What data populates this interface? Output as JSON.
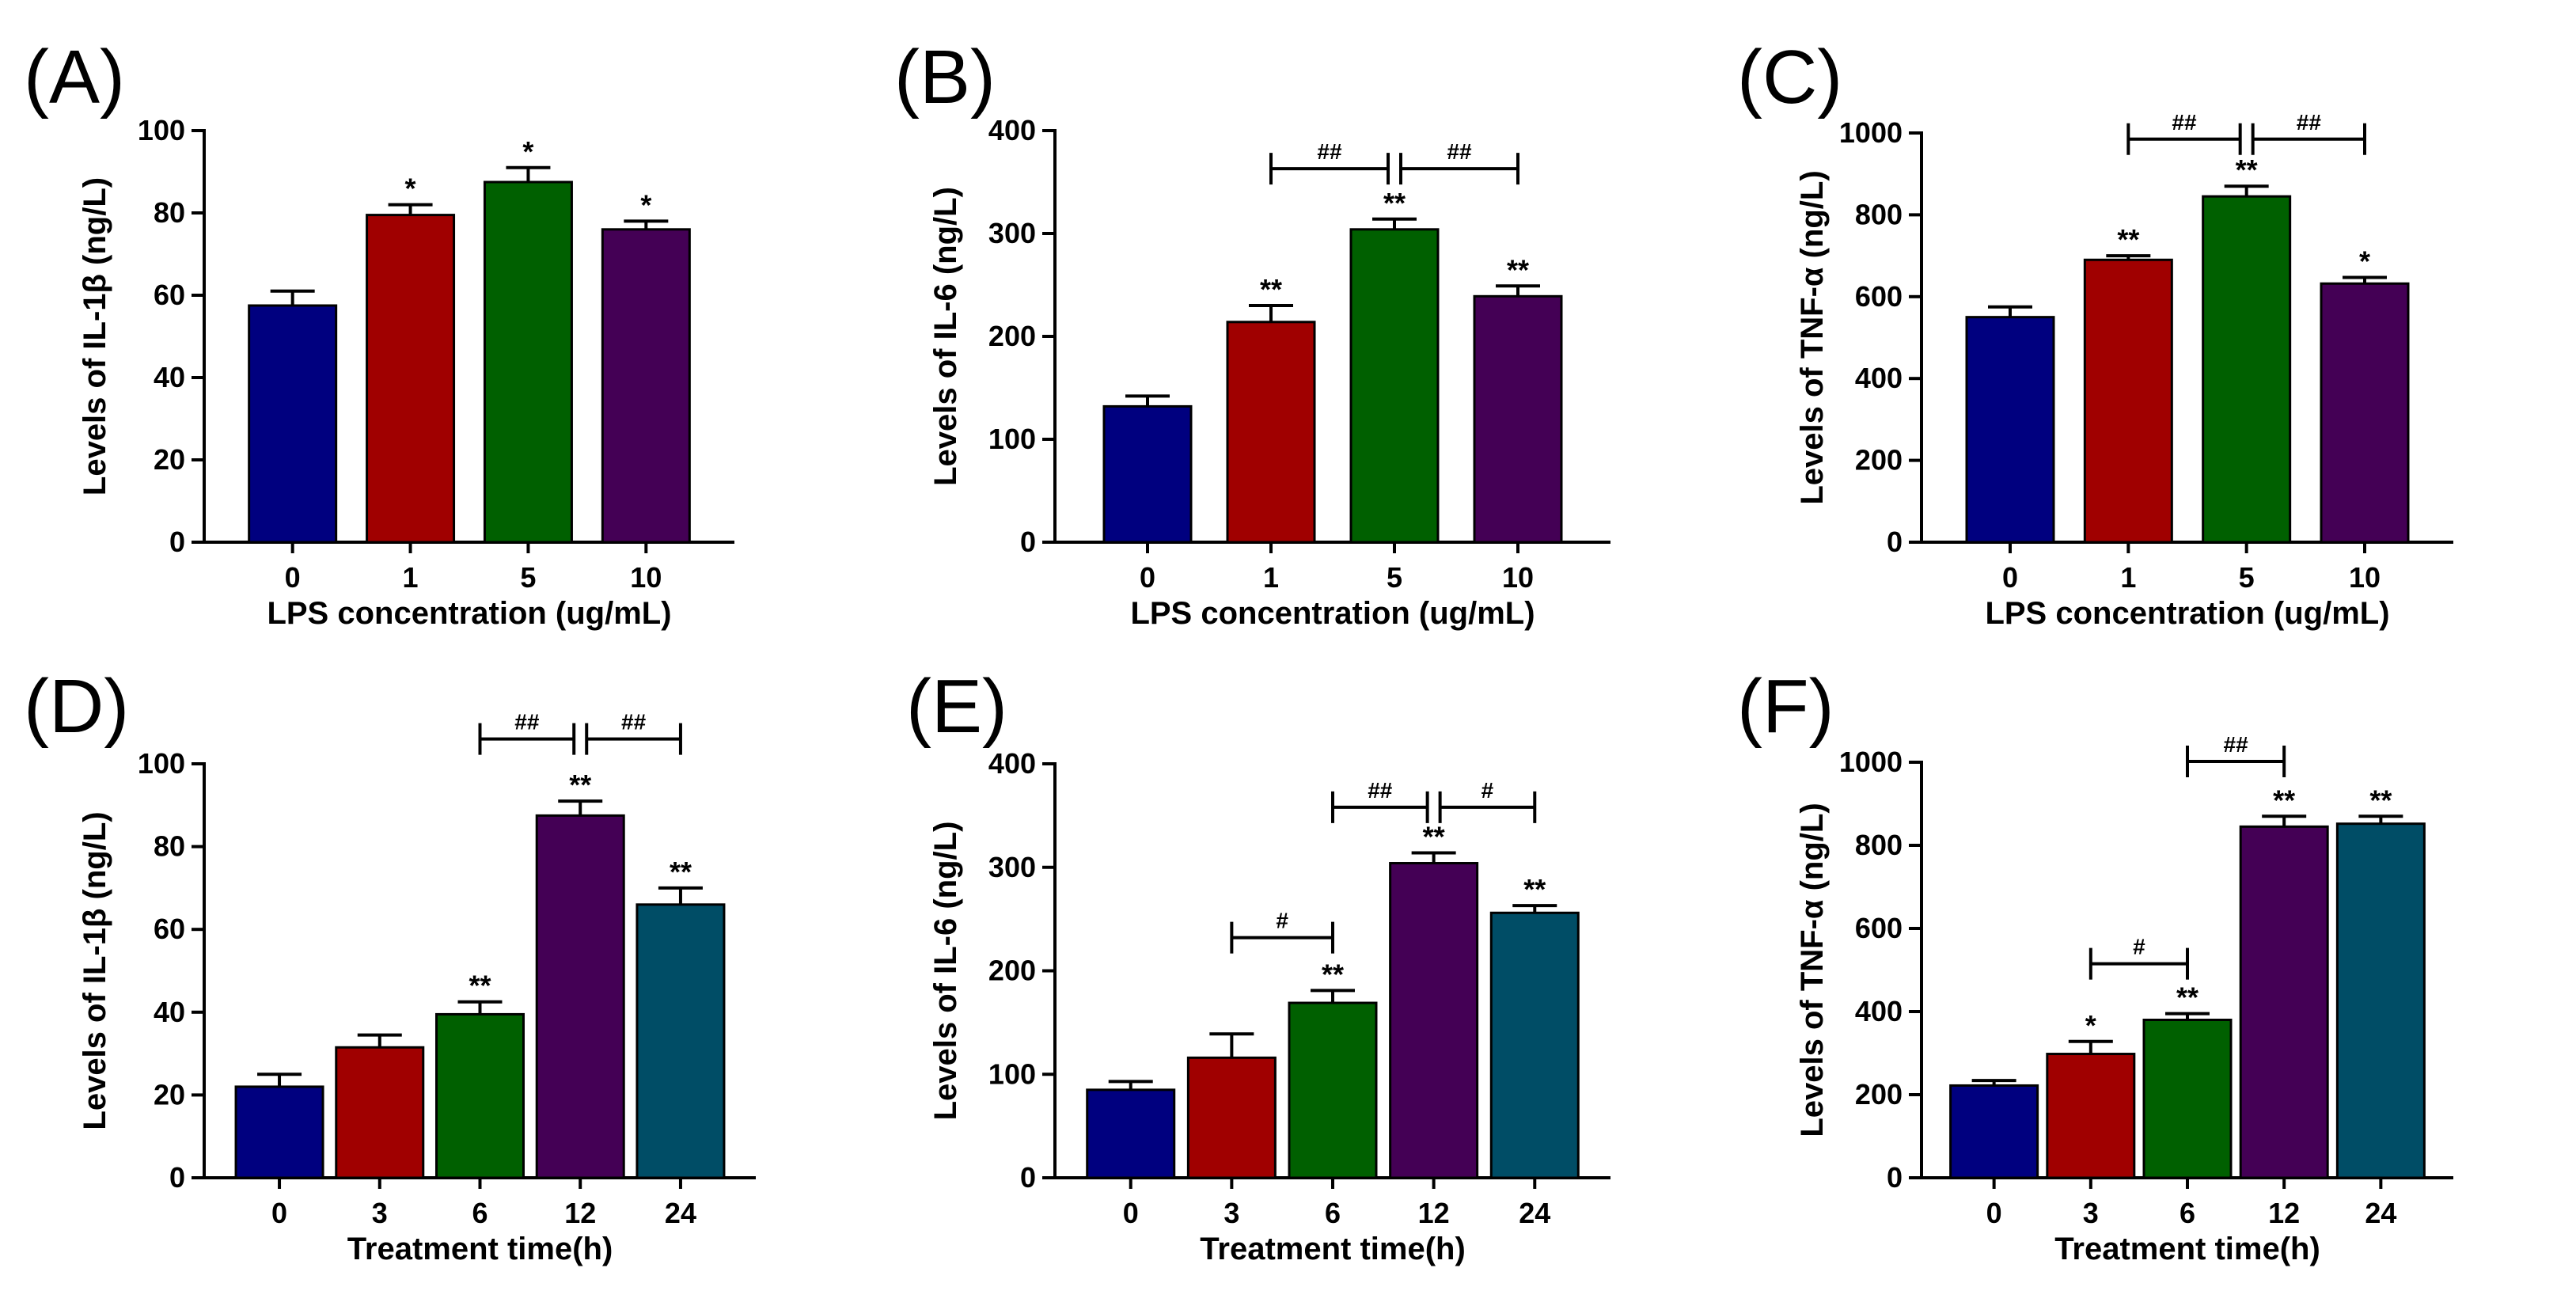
{
  "chart_data": [
    {
      "type": "bar",
      "panel": "(A)",
      "ylabel": "Levels of IL-1β (ng/L)",
      "xlabel": "LPS concentration (ug/mL)",
      "ylim": [
        0,
        100
      ],
      "yticks": [
        0,
        20,
        40,
        60,
        80,
        100
      ],
      "categories": [
        "0",
        "1",
        "5",
        "10"
      ],
      "values": [
        57.5,
        79.5,
        87.5,
        76
      ],
      "errors": [
        3.5,
        2.5,
        3.5,
        2
      ],
      "colors": [
        "#00007f",
        "#a00000",
        "#006000",
        "#440055"
      ],
      "sig": [
        "",
        "*",
        "*",
        "*"
      ],
      "brackets": []
    },
    {
      "type": "bar",
      "panel": "(B)",
      "ylabel": "Levels of IL-6 (ng/L)",
      "xlabel": "LPS concentration (ug/mL)",
      "ylim": [
        0,
        400
      ],
      "yticks": [
        0,
        100,
        200,
        300,
        400
      ],
      "categories": [
        "0",
        "1",
        "5",
        "10"
      ],
      "values": [
        132,
        214,
        304,
        239
      ],
      "errors": [
        10,
        16,
        10,
        10
      ],
      "colors": [
        "#00007f",
        "#a00000",
        "#006000",
        "#440055"
      ],
      "sig": [
        "",
        "**",
        "**",
        "**"
      ],
      "brackets": [
        {
          "from": 1,
          "to": 2,
          "y": 363,
          "label": "##",
          "side": "left"
        },
        {
          "from": 2,
          "to": 3,
          "y": 363,
          "label": "##",
          "side": "right"
        }
      ]
    },
    {
      "type": "bar",
      "panel": "(C)",
      "ylabel": "Levels of TNF-α (ng/L)",
      "xlabel": "LPS concentration (ug/mL)",
      "ylim": [
        0,
        1000
      ],
      "yticks": [
        0,
        200,
        400,
        600,
        800,
        1000
      ],
      "categories": [
        "0",
        "1",
        "5",
        "10"
      ],
      "values": [
        550,
        690,
        845,
        632
      ],
      "errors": [
        25,
        10,
        25,
        15
      ],
      "colors": [
        "#00007f",
        "#a00000",
        "#006000",
        "#440055"
      ],
      "sig": [
        "",
        "**",
        "**",
        "*"
      ],
      "brackets": [
        {
          "from": 1,
          "to": 2,
          "y": 985,
          "label": "##",
          "side": "left"
        },
        {
          "from": 2,
          "to": 3,
          "y": 985,
          "label": "##",
          "side": "right"
        }
      ]
    },
    {
      "type": "bar",
      "panel": "(D)",
      "ylabel": "Levels of IL-1β (ng/L)",
      "xlabel": "Treatment time(h)",
      "ylim": [
        0,
        100
      ],
      "yticks": [
        0,
        20,
        40,
        60,
        80,
        100
      ],
      "categories": [
        "0",
        "3",
        "6",
        "12",
        "24"
      ],
      "values": [
        22,
        31.5,
        39.5,
        87.5,
        66
      ],
      "errors": [
        3,
        3,
        3,
        3.5,
        4
      ],
      "colors": [
        "#00007f",
        "#a00000",
        "#006000",
        "#440055",
        "#004d66"
      ],
      "sig": [
        "",
        "",
        "**",
        "**",
        "**"
      ],
      "brackets": [
        {
          "from": 2,
          "to": 3,
          "y": 106,
          "label": "##",
          "side": "left"
        },
        {
          "from": 3,
          "to": 4,
          "y": 106,
          "label": "##",
          "side": "right"
        }
      ]
    },
    {
      "type": "bar",
      "panel": "(E)",
      "ylabel": "Levels of IL-6 (ng/L)",
      "xlabel": "Treatment time(h)",
      "ylim": [
        0,
        400
      ],
      "yticks": [
        0,
        100,
        200,
        300,
        400
      ],
      "categories": [
        "0",
        "3",
        "6",
        "12",
        "24"
      ],
      "values": [
        85,
        116,
        169,
        304,
        256
      ],
      "errors": [
        8,
        23,
        12,
        10,
        7
      ],
      "colors": [
        "#00007f",
        "#a00000",
        "#006000",
        "#440055",
        "#004d66"
      ],
      "sig": [
        "",
        "",
        "**",
        "**",
        "**"
      ],
      "brackets": [
        {
          "from": 1,
          "to": 2,
          "y": 232,
          "label": "#",
          "side": "none"
        },
        {
          "from": 2,
          "to": 3,
          "y": 358,
          "label": "##",
          "side": "left"
        },
        {
          "from": 3,
          "to": 4,
          "y": 358,
          "label": "#",
          "side": "right"
        }
      ]
    },
    {
      "type": "bar",
      "panel": "(F)",
      "ylabel": "Levels of TNF-α (ng/L)",
      "xlabel": "Treatment time(h)",
      "ylim": [
        0,
        1000
      ],
      "yticks": [
        0,
        200,
        400,
        600,
        800,
        1000
      ],
      "categories": [
        "0",
        "3",
        "6",
        "12",
        "24"
      ],
      "values": [
        222,
        298,
        380,
        845,
        852
      ],
      "errors": [
        12,
        30,
        15,
        25,
        18
      ],
      "colors": [
        "#00007f",
        "#a00000",
        "#006000",
        "#440055",
        "#004d66"
      ],
      "sig": [
        "",
        "*",
        "**",
        "**",
        "**"
      ],
      "brackets": [
        {
          "from": 1,
          "to": 2,
          "y": 515,
          "label": "#",
          "side": "none"
        },
        {
          "from": 2,
          "to": 3,
          "y": 1002,
          "label": "##",
          "side": "none"
        }
      ]
    }
  ]
}
